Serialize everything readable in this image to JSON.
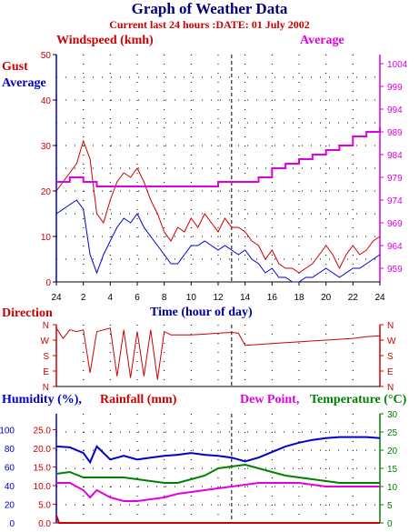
{
  "page": {
    "title": "Graph of Weather Data",
    "subtitle": "Current last 24 hours :DATE: 01 July 2002"
  },
  "colors": {
    "gust": "#cc0000",
    "average": "#0000cc",
    "pressure": "#e000e0",
    "direction": "#cc0000",
    "humidity": "#0000cc",
    "rainfall": "#cc0000",
    "dew_point": "#e000e0",
    "temperature": "#008000",
    "axis": "#000000"
  },
  "wind_panel": {
    "windspeed_label": "Windspeed (kmh)",
    "average_label": "Average",
    "gust_label": "Gust",
    "avg_label": "Average",
    "xlabel": "Time (hour of day)"
  },
  "direction_panel": {
    "label": "Direction",
    "ticks": [
      "N",
      "W",
      "S",
      "E",
      "N"
    ]
  },
  "humidity_panel": {
    "humidity_label": "Humidity (%),",
    "rainfall_label": "Rainfall (mm)",
    "dewpoint_label": "Dew Point,",
    "temperature_label": "Temperature (°C)"
  },
  "chart_data": [
    {
      "type": "line",
      "x_ticks": [
        "24",
        "2",
        "4",
        "6",
        "8",
        "10",
        "12",
        "14",
        "16",
        "18",
        "20",
        "22",
        "24"
      ],
      "xlabel": "Time (hour of day)",
      "y_left": {
        "label": "Windspeed (kmh)",
        "ticks": [
          "0",
          "10",
          "20",
          "30",
          "40",
          "50"
        ],
        "lim": [
          0,
          50
        ]
      },
      "y_right": {
        "label": "Average",
        "ticks": [
          "959",
          "964",
          "969",
          "974",
          "979",
          "984",
          "989",
          "994",
          "999",
          "1004"
        ],
        "lim": [
          956,
          1006
        ]
      },
      "grid": "dotted",
      "marker_hour": 13,
      "series": [
        {
          "name": "Gust",
          "axis": "left",
          "x": [
            0,
            0.5,
            1,
            1.5,
            2,
            2.5,
            3,
            3.5,
            4,
            4.5,
            5,
            5.5,
            6,
            6.5,
            7,
            7.5,
            8,
            8.5,
            9,
            9.5,
            10,
            10.5,
            11,
            11.5,
            12,
            12.5,
            13,
            13.5,
            14,
            14.5,
            15,
            15.5,
            16,
            16.5,
            17,
            17.5,
            18,
            18.5,
            19,
            19.5,
            20,
            20.5,
            21,
            21.5,
            22,
            22.5,
            23,
            23.5,
            24
          ],
          "y": [
            20,
            22,
            24,
            26,
            31,
            27,
            15,
            13,
            18,
            22,
            24,
            23,
            25,
            22,
            18,
            15,
            11,
            9,
            12,
            11,
            14,
            12,
            15,
            13,
            11,
            14,
            12,
            12,
            11,
            9,
            8,
            5,
            7,
            4,
            3,
            3,
            2,
            3,
            4,
            6,
            8,
            6,
            3,
            6,
            8,
            6,
            7,
            9,
            10
          ]
        },
        {
          "name": "Average",
          "axis": "left",
          "x": [
            0,
            0.5,
            1,
            1.5,
            2,
            2.5,
            3,
            3.5,
            4,
            4.5,
            5,
            5.5,
            6,
            6.5,
            7,
            7.5,
            8,
            8.5,
            9,
            9.5,
            10,
            10.5,
            11,
            11.5,
            12,
            12.5,
            13,
            13.5,
            14,
            14.5,
            15,
            15.5,
            16,
            16.5,
            17,
            17.5,
            18,
            18.5,
            19,
            19.5,
            20,
            20.5,
            21,
            21.5,
            22,
            22.5,
            23,
            23.5,
            24
          ],
          "y": [
            15,
            16,
            17,
            18,
            16,
            6,
            2,
            6,
            9,
            12,
            14,
            13,
            15,
            12,
            10,
            8,
            6,
            4,
            4,
            6,
            8,
            8,
            9,
            8,
            7,
            8,
            7,
            6,
            7,
            5,
            4,
            2,
            3,
            1,
            1,
            0,
            0,
            1,
            1,
            2,
            3,
            2,
            1,
            2,
            3,
            3,
            4,
            5,
            6
          ]
        },
        {
          "name": "Average",
          "axis": "right",
          "x": [
            0,
            1,
            2,
            3,
            4,
            5,
            6,
            7,
            8,
            9,
            10,
            11,
            12,
            13,
            14,
            15,
            16,
            17,
            18,
            19,
            20,
            21,
            22,
            23,
            24
          ],
          "y": [
            978,
            979,
            978,
            977,
            977,
            977,
            977,
            977,
            977,
            977,
            977,
            977,
            978,
            978,
            978,
            979,
            981,
            982,
            983,
            984,
            985,
            986,
            988,
            989,
            990
          ]
        }
      ]
    },
    {
      "type": "line",
      "ylabel": "Direction",
      "y_ticks": [
        "N",
        "W",
        "S",
        "E",
        "N"
      ],
      "series": [
        {
          "name": "Direction",
          "x": [
            0,
            0.5,
            1,
            1.5,
            2,
            2.5,
            3,
            3.5,
            4,
            4.5,
            5,
            5.5,
            6,
            6.5,
            7,
            7.5,
            8,
            8.5,
            9,
            10,
            11,
            12,
            13,
            13.5,
            14,
            15,
            16,
            17,
            18,
            19,
            20,
            21,
            22,
            23,
            24
          ],
          "y": [
            340,
            280,
            330,
            320,
            330,
            80,
            320,
            330,
            340,
            60,
            330,
            50,
            320,
            60,
            330,
            40,
            320,
            300,
            300,
            300,
            305,
            310,
            315,
            310,
            240,
            245,
            250,
            255,
            260,
            265,
            270,
            275,
            280,
            290,
            295
          ]
        }
      ]
    },
    {
      "type": "line",
      "x_ticks": [
        "24",
        "2",
        "4",
        "6",
        "8",
        "10",
        "12",
        "14",
        "16",
        "18",
        "20",
        "22",
        "24"
      ],
      "y_left_humidity": {
        "label": "Humidity (%)",
        "ticks": [
          "0",
          "20",
          "40",
          "60",
          "80",
          "100"
        ],
        "lim": [
          0,
          117
        ]
      },
      "y_left_rainfall": {
        "label": "Rainfall (mm)",
        "ticks": [
          "0.0",
          "5.0",
          "10.0",
          "15.0",
          "20.0",
          "25.0"
        ],
        "lim": [
          0,
          29.25
        ]
      },
      "y_right": {
        "label": "Temperature (°C)",
        "ticks": [
          "0",
          "5",
          "10",
          "15",
          "20",
          "25",
          "30"
        ],
        "lim": [
          0,
          30
        ]
      },
      "grid": "dotted",
      "marker_hour": 13,
      "series": [
        {
          "name": "Humidity",
          "axis": "left_humidity",
          "x": [
            0,
            1,
            2,
            2.5,
            3,
            4,
            5,
            6,
            7,
            8,
            9,
            10,
            11,
            12,
            13,
            14,
            15,
            16,
            17,
            18,
            19,
            20,
            21,
            22,
            23,
            24
          ],
          "y": [
            82,
            81,
            75,
            65,
            82,
            68,
            72,
            68,
            70,
            72,
            73,
            75,
            73,
            72,
            70,
            66,
            70,
            76,
            82,
            86,
            89,
            91,
            92,
            92,
            92,
            91
          ]
        },
        {
          "name": "Rainfall",
          "axis": "left_rainfall",
          "x": [
            0,
            0.2,
            24
          ],
          "y": [
            2.0,
            0.0,
            0.0
          ]
        },
        {
          "name": "Dew Point",
          "axis": "right",
          "x": [
            0,
            1,
            2,
            2.5,
            3,
            4,
            5,
            6,
            7,
            8,
            9,
            10,
            11,
            12,
            13,
            14,
            15,
            16,
            17,
            18,
            19,
            20,
            21,
            22,
            23,
            24
          ],
          "y": [
            11,
            11,
            9,
            7,
            9,
            7,
            6,
            6,
            6.5,
            7,
            8,
            8.5,
            9,
            9.5,
            10,
            10.5,
            11,
            11,
            11,
            11,
            10.5,
            10,
            10,
            10,
            10,
            10
          ]
        },
        {
          "name": "Temperature",
          "axis": "right",
          "x": [
            0,
            1,
            2,
            3,
            4,
            5,
            6,
            7,
            8,
            9,
            10,
            11,
            12,
            13,
            14,
            15,
            16,
            17,
            18,
            19,
            20,
            21,
            22,
            23,
            24
          ],
          "y": [
            13.5,
            14,
            12.5,
            12.5,
            12.5,
            12.5,
            12,
            11.5,
            11,
            11,
            12,
            13,
            15,
            15.5,
            16,
            15,
            14,
            13,
            12.5,
            12,
            11.5,
            11,
            11,
            11,
            11
          ]
        }
      ]
    }
  ]
}
